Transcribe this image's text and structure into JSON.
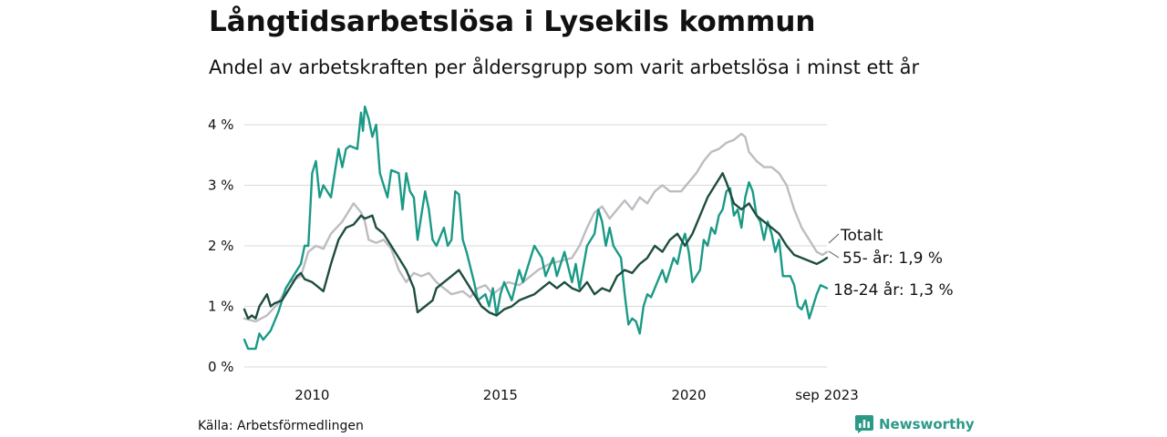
{
  "header": {
    "title": "Långtidsarbetslösa i Lysekils kommun",
    "subtitle": "Andel av arbetskraften per åldersgrupp som varit arbetslösa i minst ett år"
  },
  "footer": {
    "source": "Källa: Arbetsförmedlingen",
    "logo_text": "Newsworthy"
  },
  "colors": {
    "total": "#1e4d40",
    "age55": "#bdbcc2",
    "age1824": "#1a9a86",
    "grid": "#d9d9d9",
    "text": "#111111"
  },
  "chart_data": {
    "type": "line",
    "title": "Långtidsarbetslösa i Lysekils kommun",
    "subtitle": "Andel av arbetskraften per åldersgrupp som varit arbetslösa i minst ett år",
    "xlabel": "",
    "ylabel": "",
    "xlim": [
      2008.2,
      2023.67
    ],
    "ylim": [
      0,
      4.4
    ],
    "y_ticks": [
      0,
      1,
      2,
      3,
      4
    ],
    "y_tick_labels": [
      "0 %",
      "1 %",
      "2 %",
      "3 %",
      "4 %"
    ],
    "x_ticks": [
      2010,
      2015,
      2020,
      2023.67
    ],
    "x_tick_labels": [
      "2010",
      "2015",
      "2020",
      "sep 2023"
    ],
    "grid": true,
    "series": [
      {
        "name": "55- år",
        "end_label": "55- år: 1,9 %",
        "color": "#bdbcc2",
        "points": [
          [
            2008.2,
            0.8
          ],
          [
            2008.5,
            0.75
          ],
          [
            2008.8,
            0.85
          ],
          [
            2009.1,
            1.05
          ],
          [
            2009.4,
            1.4
          ],
          [
            2009.7,
            1.5
          ],
          [
            2009.9,
            1.9
          ],
          [
            2010.1,
            2.0
          ],
          [
            2010.3,
            1.95
          ],
          [
            2010.5,
            2.2
          ],
          [
            2010.8,
            2.4
          ],
          [
            2011.0,
            2.6
          ],
          [
            2011.1,
            2.7
          ],
          [
            2011.3,
            2.55
          ],
          [
            2011.4,
            2.4
          ],
          [
            2011.5,
            2.1
          ],
          [
            2011.7,
            2.05
          ],
          [
            2011.9,
            2.1
          ],
          [
            2012.1,
            1.95
          ],
          [
            2012.3,
            1.6
          ],
          [
            2012.5,
            1.4
          ],
          [
            2012.7,
            1.55
          ],
          [
            2012.9,
            1.5
          ],
          [
            2013.1,
            1.55
          ],
          [
            2013.3,
            1.4
          ],
          [
            2013.5,
            1.3
          ],
          [
            2013.7,
            1.2
          ],
          [
            2014.0,
            1.25
          ],
          [
            2014.2,
            1.15
          ],
          [
            2014.4,
            1.3
          ],
          [
            2014.6,
            1.35
          ],
          [
            2014.8,
            1.2
          ],
          [
            2015.0,
            1.3
          ],
          [
            2015.2,
            1.4
          ],
          [
            2015.5,
            1.35
          ],
          [
            2015.8,
            1.5
          ],
          [
            2016.0,
            1.6
          ],
          [
            2016.3,
            1.7
          ],
          [
            2016.6,
            1.75
          ],
          [
            2016.9,
            1.8
          ],
          [
            2017.1,
            2.0
          ],
          [
            2017.3,
            2.3
          ],
          [
            2017.5,
            2.55
          ],
          [
            2017.7,
            2.65
          ],
          [
            2017.9,
            2.45
          ],
          [
            2018.1,
            2.6
          ],
          [
            2018.3,
            2.75
          ],
          [
            2018.5,
            2.6
          ],
          [
            2018.7,
            2.8
          ],
          [
            2018.9,
            2.7
          ],
          [
            2019.1,
            2.9
          ],
          [
            2019.3,
            3.0
          ],
          [
            2019.5,
            2.9
          ],
          [
            2019.8,
            2.9
          ],
          [
            2020.0,
            3.05
          ],
          [
            2020.2,
            3.2
          ],
          [
            2020.4,
            3.4
          ],
          [
            2020.6,
            3.55
          ],
          [
            2020.8,
            3.6
          ],
          [
            2021.0,
            3.7
          ],
          [
            2021.2,
            3.75
          ],
          [
            2021.4,
            3.85
          ],
          [
            2021.5,
            3.8
          ],
          [
            2021.6,
            3.55
          ],
          [
            2021.8,
            3.4
          ],
          [
            2022.0,
            3.3
          ],
          [
            2022.2,
            3.3
          ],
          [
            2022.4,
            3.2
          ],
          [
            2022.6,
            3.0
          ],
          [
            2022.8,
            2.6
          ],
          [
            2023.0,
            2.3
          ],
          [
            2023.2,
            2.1
          ],
          [
            2023.4,
            1.9
          ],
          [
            2023.55,
            1.85
          ],
          [
            2023.67,
            1.9
          ]
        ]
      },
      {
        "name": "18-24 år",
        "end_label": "18-24 år: 1,3 %",
        "color": "#1a9a86",
        "points": [
          [
            2008.2,
            0.45
          ],
          [
            2008.3,
            0.3
          ],
          [
            2008.5,
            0.3
          ],
          [
            2008.6,
            0.55
          ],
          [
            2008.7,
            0.45
          ],
          [
            2008.9,
            0.6
          ],
          [
            2009.1,
            0.9
          ],
          [
            2009.3,
            1.3
          ],
          [
            2009.5,
            1.5
          ],
          [
            2009.7,
            1.7
          ],
          [
            2009.8,
            2.0
          ],
          [
            2009.9,
            2.0
          ],
          [
            2010.0,
            3.2
          ],
          [
            2010.1,
            3.4
          ],
          [
            2010.2,
            2.8
          ],
          [
            2010.3,
            3.0
          ],
          [
            2010.5,
            2.8
          ],
          [
            2010.6,
            3.2
          ],
          [
            2010.7,
            3.6
          ],
          [
            2010.8,
            3.3
          ],
          [
            2010.9,
            3.6
          ],
          [
            2011.0,
            3.65
          ],
          [
            2011.2,
            3.6
          ],
          [
            2011.3,
            4.2
          ],
          [
            2011.35,
            3.9
          ],
          [
            2011.4,
            4.3
          ],
          [
            2011.5,
            4.1
          ],
          [
            2011.6,
            3.8
          ],
          [
            2011.7,
            4.0
          ],
          [
            2011.8,
            3.2
          ],
          [
            2011.9,
            3.0
          ],
          [
            2012.0,
            2.8
          ],
          [
            2012.1,
            3.25
          ],
          [
            2012.3,
            3.2
          ],
          [
            2012.4,
            2.6
          ],
          [
            2012.5,
            3.2
          ],
          [
            2012.6,
            2.9
          ],
          [
            2012.7,
            2.8
          ],
          [
            2012.8,
            2.1
          ],
          [
            2012.9,
            2.5
          ],
          [
            2013.0,
            2.9
          ],
          [
            2013.1,
            2.6
          ],
          [
            2013.2,
            2.1
          ],
          [
            2013.3,
            2.0
          ],
          [
            2013.5,
            2.3
          ],
          [
            2013.6,
            2.0
          ],
          [
            2013.7,
            2.1
          ],
          [
            2013.8,
            2.9
          ],
          [
            2013.9,
            2.85
          ],
          [
            2014.0,
            2.1
          ],
          [
            2014.1,
            1.9
          ],
          [
            2014.3,
            1.4
          ],
          [
            2014.4,
            1.1
          ],
          [
            2014.6,
            1.2
          ],
          [
            2014.7,
            1.0
          ],
          [
            2014.8,
            1.3
          ],
          [
            2014.9,
            0.85
          ],
          [
            2015.0,
            1.2
          ],
          [
            2015.1,
            1.4
          ],
          [
            2015.3,
            1.1
          ],
          [
            2015.5,
            1.6
          ],
          [
            2015.6,
            1.4
          ],
          [
            2015.8,
            1.8
          ],
          [
            2015.9,
            2.0
          ],
          [
            2016.1,
            1.8
          ],
          [
            2016.2,
            1.5
          ],
          [
            2016.4,
            1.8
          ],
          [
            2016.5,
            1.5
          ],
          [
            2016.7,
            1.9
          ],
          [
            2016.9,
            1.4
          ],
          [
            2017.0,
            1.7
          ],
          [
            2017.1,
            1.3
          ],
          [
            2017.3,
            2.0
          ],
          [
            2017.5,
            2.2
          ],
          [
            2017.6,
            2.6
          ],
          [
            2017.7,
            2.4
          ],
          [
            2017.8,
            2.0
          ],
          [
            2017.9,
            2.3
          ],
          [
            2018.0,
            2.0
          ],
          [
            2018.2,
            1.8
          ],
          [
            2018.3,
            1.2
          ],
          [
            2018.4,
            0.7
          ],
          [
            2018.5,
            0.8
          ],
          [
            2018.6,
            0.75
          ],
          [
            2018.7,
            0.55
          ],
          [
            2018.8,
            1.0
          ],
          [
            2018.9,
            1.2
          ],
          [
            2019.0,
            1.15
          ],
          [
            2019.1,
            1.3
          ],
          [
            2019.3,
            1.6
          ],
          [
            2019.4,
            1.4
          ],
          [
            2019.5,
            1.6
          ],
          [
            2019.6,
            1.8
          ],
          [
            2019.7,
            1.7
          ],
          [
            2019.8,
            2.0
          ],
          [
            2019.9,
            2.2
          ],
          [
            2020.0,
            1.9
          ],
          [
            2020.1,
            1.4
          ],
          [
            2020.3,
            1.6
          ],
          [
            2020.4,
            2.1
          ],
          [
            2020.5,
            2.0
          ],
          [
            2020.6,
            2.3
          ],
          [
            2020.7,
            2.2
          ],
          [
            2020.8,
            2.5
          ],
          [
            2020.9,
            2.6
          ],
          [
            2021.0,
            2.9
          ],
          [
            2021.1,
            2.95
          ],
          [
            2021.2,
            2.5
          ],
          [
            2021.3,
            2.6
          ],
          [
            2021.4,
            2.3
          ],
          [
            2021.5,
            2.8
          ],
          [
            2021.6,
            3.05
          ],
          [
            2021.7,
            2.9
          ],
          [
            2021.8,
            2.5
          ],
          [
            2021.9,
            2.4
          ],
          [
            2022.0,
            2.1
          ],
          [
            2022.1,
            2.4
          ],
          [
            2022.2,
            2.2
          ],
          [
            2022.3,
            1.9
          ],
          [
            2022.4,
            2.1
          ],
          [
            2022.5,
            1.5
          ],
          [
            2022.6,
            1.5
          ],
          [
            2022.7,
            1.5
          ],
          [
            2022.8,
            1.35
          ],
          [
            2022.9,
            1.0
          ],
          [
            2023.0,
            0.95
          ],
          [
            2023.1,
            1.1
          ],
          [
            2023.2,
            0.8
          ],
          [
            2023.3,
            1.0
          ],
          [
            2023.4,
            1.2
          ],
          [
            2023.5,
            1.35
          ],
          [
            2023.67,
            1.3
          ]
        ]
      },
      {
        "name": "Totalt",
        "end_label": "Totalt",
        "color": "#1e4d40",
        "points": [
          [
            2008.2,
            0.95
          ],
          [
            2008.3,
            0.8
          ],
          [
            2008.4,
            0.85
          ],
          [
            2008.5,
            0.8
          ],
          [
            2008.6,
            1.0
          ],
          [
            2008.8,
            1.2
          ],
          [
            2008.9,
            1.0
          ],
          [
            2009.0,
            1.05
          ],
          [
            2009.2,
            1.1
          ],
          [
            2009.4,
            1.3
          ],
          [
            2009.6,
            1.5
          ],
          [
            2009.7,
            1.55
          ],
          [
            2009.8,
            1.45
          ],
          [
            2010.0,
            1.4
          ],
          [
            2010.2,
            1.3
          ],
          [
            2010.3,
            1.25
          ],
          [
            2010.5,
            1.7
          ],
          [
            2010.7,
            2.1
          ],
          [
            2010.9,
            2.3
          ],
          [
            2011.1,
            2.35
          ],
          [
            2011.3,
            2.5
          ],
          [
            2011.4,
            2.45
          ],
          [
            2011.6,
            2.5
          ],
          [
            2011.7,
            2.3
          ],
          [
            2011.9,
            2.2
          ],
          [
            2012.1,
            2.0
          ],
          [
            2012.3,
            1.8
          ],
          [
            2012.5,
            1.6
          ],
          [
            2012.7,
            1.3
          ],
          [
            2012.8,
            0.9
          ],
          [
            2013.0,
            1.0
          ],
          [
            2013.2,
            1.1
          ],
          [
            2013.3,
            1.3
          ],
          [
            2013.5,
            1.4
          ],
          [
            2013.7,
            1.5
          ],
          [
            2013.9,
            1.6
          ],
          [
            2014.1,
            1.4
          ],
          [
            2014.3,
            1.2
          ],
          [
            2014.5,
            1.0
          ],
          [
            2014.7,
            0.9
          ],
          [
            2014.9,
            0.85
          ],
          [
            2015.1,
            0.95
          ],
          [
            2015.3,
            1.0
          ],
          [
            2015.5,
            1.1
          ],
          [
            2015.7,
            1.15
          ],
          [
            2015.9,
            1.2
          ],
          [
            2016.1,
            1.3
          ],
          [
            2016.3,
            1.4
          ],
          [
            2016.5,
            1.3
          ],
          [
            2016.7,
            1.4
          ],
          [
            2016.9,
            1.3
          ],
          [
            2017.1,
            1.25
          ],
          [
            2017.3,
            1.4
          ],
          [
            2017.5,
            1.2
          ],
          [
            2017.7,
            1.3
          ],
          [
            2017.9,
            1.25
          ],
          [
            2018.1,
            1.5
          ],
          [
            2018.3,
            1.6
          ],
          [
            2018.5,
            1.55
          ],
          [
            2018.7,
            1.7
          ],
          [
            2018.9,
            1.8
          ],
          [
            2019.1,
            2.0
          ],
          [
            2019.3,
            1.9
          ],
          [
            2019.5,
            2.1
          ],
          [
            2019.7,
            2.2
          ],
          [
            2019.9,
            2.0
          ],
          [
            2020.1,
            2.2
          ],
          [
            2020.3,
            2.5
          ],
          [
            2020.5,
            2.8
          ],
          [
            2020.7,
            3.0
          ],
          [
            2020.9,
            3.2
          ],
          [
            2021.0,
            3.05
          ],
          [
            2021.2,
            2.7
          ],
          [
            2021.4,
            2.6
          ],
          [
            2021.6,
            2.7
          ],
          [
            2021.8,
            2.5
          ],
          [
            2022.0,
            2.4
          ],
          [
            2022.2,
            2.3
          ],
          [
            2022.4,
            2.2
          ],
          [
            2022.6,
            2.0
          ],
          [
            2022.8,
            1.85
          ],
          [
            2023.0,
            1.8
          ],
          [
            2023.2,
            1.75
          ],
          [
            2023.4,
            1.7
          ],
          [
            2023.55,
            1.75
          ],
          [
            2023.67,
            1.8
          ]
        ]
      }
    ]
  }
}
